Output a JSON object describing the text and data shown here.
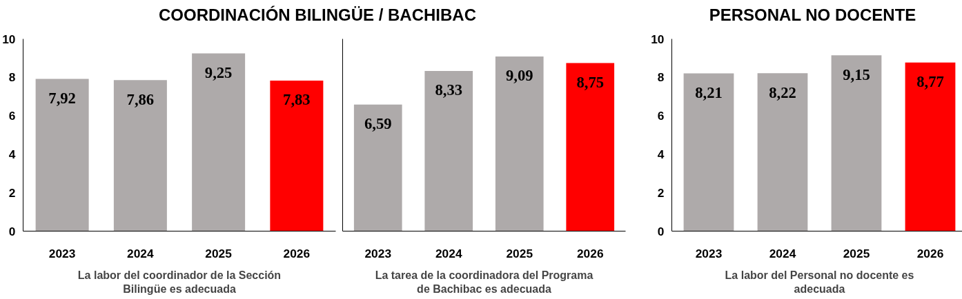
{
  "chart_data": [
    {
      "type": "bar",
      "title": "COORDINACIÓN BILINGÜE / BACHIBAC",
      "xlabel": "La labor del coordinador de la Sección Bilingüe es adecuada",
      "categories": [
        "2023",
        "2024",
        "2025",
        "2026"
      ],
      "values": [
        7.92,
        7.86,
        9.25,
        7.83
      ],
      "value_labels": [
        "7,92",
        "7,86",
        "9,25",
        "7,83"
      ],
      "colors": [
        "#aeaaaa",
        "#aeaaaa",
        "#aeaaaa",
        "#ff0000"
      ],
      "ylim": [
        0,
        10
      ],
      "yticks": [
        0,
        2,
        4,
        6,
        8,
        10
      ]
    },
    {
      "type": "bar",
      "xlabel": "La tarea de la coordinadora del Programa de Bachibac es adecuada",
      "categories": [
        "2023",
        "2024",
        "2025",
        "2026"
      ],
      "values": [
        6.59,
        8.33,
        9.09,
        8.75
      ],
      "value_labels": [
        "6,59",
        "8,33",
        "9,09",
        "8,75"
      ],
      "colors": [
        "#aeaaaa",
        "#aeaaaa",
        "#aeaaaa",
        "#ff0000"
      ],
      "ylim": [
        0,
        10
      ],
      "yticks": [
        0,
        2,
        4,
        6,
        8,
        10
      ],
      "tick_labels": "x"
    },
    {
      "type": "bar",
      "title": "PERSONAL NO DOCENTE",
      "xlabel": "La labor del Personal no docente es adecuada",
      "categories": [
        "2023",
        "2024",
        "2025",
        "2026"
      ],
      "values": [
        8.21,
        8.22,
        9.15,
        8.77
      ],
      "value_labels": [
        "8,21",
        "8,22",
        "9,15",
        "8,77"
      ],
      "colors": [
        "#aeaaaa",
        "#aeaaaa",
        "#aeaaaa",
        "#ff0000"
      ],
      "ylim": [
        0,
        10
      ],
      "yticks": [
        0,
        2,
        4,
        6,
        8,
        10
      ]
    }
  ]
}
